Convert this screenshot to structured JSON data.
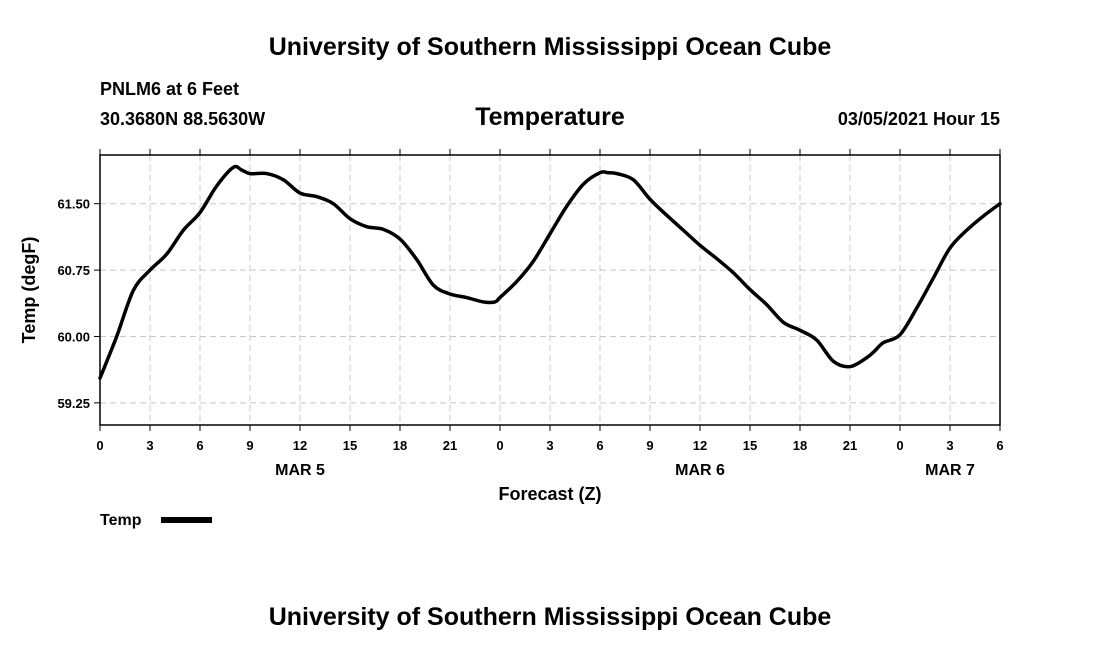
{
  "header": {
    "banner_top": "University of Southern Mississippi Ocean Cube",
    "station": "PNLM6 at 6 Feet",
    "coords": "30.3680N 88.5630W",
    "datetime": "03/05/2021 Hour 15"
  },
  "footer": {
    "banner_bottom": "University of Southern Mississippi Ocean Cube"
  },
  "colors": {
    "line": "#000000",
    "grid": "#c8c8c8",
    "frame": "#000000"
  },
  "chart_data": {
    "type": "line",
    "title": "Temperature",
    "xlabel": "Forecast (Z)",
    "ylabel": "Temp (degF)",
    "xlim": [
      0,
      54
    ],
    "ylim": [
      59.0,
      62.05
    ],
    "yticks": [
      59.25,
      60.0,
      60.75,
      61.5
    ],
    "ytick_labels": [
      "59.25",
      "60.00",
      "60.75",
      "61.50"
    ],
    "xticks": [
      0,
      3,
      6,
      9,
      12,
      15,
      18,
      21,
      24,
      27,
      30,
      33,
      36,
      39,
      42,
      45,
      48,
      51,
      54
    ],
    "xtick_labels": [
      "0",
      "3",
      "6",
      "9",
      "12",
      "15",
      "18",
      "21",
      "0",
      "3",
      "6",
      "9",
      "12",
      "15",
      "18",
      "21",
      "0",
      "3",
      "6"
    ],
    "day_labels": [
      {
        "x": 12,
        "label": "MAR 5"
      },
      {
        "x": 36,
        "label": "MAR 6"
      },
      {
        "x": 51,
        "label": "MAR 7"
      }
    ],
    "grid": true,
    "legend_position": "bottom-left",
    "series": [
      {
        "name": "Temp",
        "x": [
          0,
          1,
          2,
          3,
          4,
          5,
          6,
          7,
          8,
          8.5,
          9,
          10,
          11,
          12,
          13,
          14,
          15,
          16,
          17,
          18,
          19,
          20,
          21,
          22,
          23,
          23.7,
          24,
          25,
          26,
          27,
          28,
          29,
          30,
          30.5,
          31,
          32,
          33,
          34,
          35,
          36,
          37,
          38,
          39,
          40,
          41,
          42,
          43,
          44,
          45,
          46,
          46.5,
          47,
          48,
          49,
          50,
          51,
          52,
          53,
          54
        ],
        "values": [
          59.53,
          60.0,
          60.52,
          60.75,
          60.93,
          61.2,
          61.4,
          61.7,
          61.91,
          61.88,
          61.84,
          61.84,
          61.77,
          61.62,
          61.58,
          61.5,
          61.33,
          61.24,
          61.21,
          61.1,
          60.87,
          60.58,
          60.48,
          60.44,
          60.39,
          60.39,
          60.44,
          60.62,
          60.85,
          61.16,
          61.47,
          61.72,
          61.85,
          61.85,
          61.84,
          61.77,
          61.55,
          61.37,
          61.2,
          61.03,
          60.88,
          60.72,
          60.53,
          60.36,
          60.16,
          60.07,
          59.96,
          59.72,
          59.66,
          59.76,
          59.84,
          59.93,
          60.02,
          60.32,
          60.66,
          61.0,
          61.2,
          61.36,
          61.5
        ]
      }
    ]
  }
}
